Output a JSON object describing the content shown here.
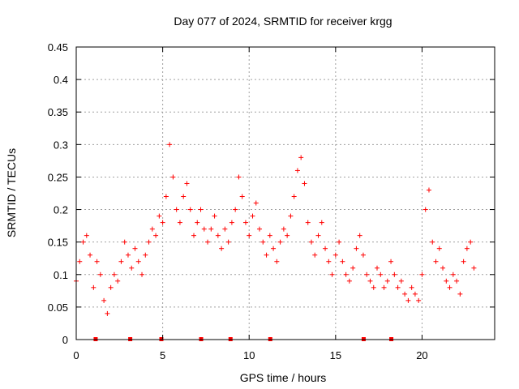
{
  "chart_data": {
    "type": "scatter",
    "title": "Day 077 of 2024, SRMTID for receiver krgg",
    "xlabel": "GPS time / hours",
    "ylabel": "SRMTID / TECUs",
    "xlim": [
      0,
      24.2
    ],
    "ylim": [
      0,
      0.45
    ],
    "xticks": [
      0,
      5,
      10,
      15,
      20
    ],
    "xtick_labels": [
      "0",
      "5",
      "10",
      "15",
      "20"
    ],
    "yticks": [
      0,
      0.05,
      0.1,
      0.15,
      0.2,
      0.25,
      0.3,
      0.35,
      0.4,
      0.45
    ],
    "ytick_labels": [
      "0",
      "0.05",
      "0.1",
      "0.15",
      "0.2",
      "0.25",
      "0.3",
      "0.35",
      "0.4",
      "0.45"
    ],
    "grid": true,
    "marker": "+",
    "color": "#ff0000",
    "series": [
      {
        "name": "SRMTID",
        "x": [
          0.0,
          0.2,
          0.4,
          0.6,
          0.8,
          1.0,
          1.2,
          1.4,
          1.6,
          1.8,
          2.0,
          2.2,
          2.4,
          2.6,
          2.8,
          3.0,
          3.2,
          3.4,
          3.6,
          3.8,
          4.0,
          4.2,
          4.4,
          4.6,
          4.8,
          5.0,
          5.2,
          5.4,
          5.6,
          5.8,
          6.0,
          6.2,
          6.4,
          6.6,
          6.8,
          7.0,
          7.2,
          7.4,
          7.6,
          7.8,
          8.0,
          8.2,
          8.4,
          8.6,
          8.8,
          9.0,
          9.2,
          9.4,
          9.6,
          9.8,
          10.0,
          10.2,
          10.4,
          10.6,
          10.8,
          11.0,
          11.2,
          11.4,
          11.6,
          11.8,
          12.0,
          12.2,
          12.4,
          12.6,
          12.8,
          13.0,
          13.2,
          13.4,
          13.6,
          13.8,
          14.0,
          14.2,
          14.4,
          14.6,
          14.8,
          15.0,
          15.2,
          15.4,
          15.6,
          15.8,
          16.0,
          16.2,
          16.4,
          16.6,
          16.8,
          17.0,
          17.2,
          17.4,
          17.6,
          17.8,
          18.0,
          18.2,
          18.4,
          18.6,
          18.8,
          19.0,
          19.2,
          19.4,
          19.6,
          19.8,
          20.0,
          20.2,
          20.4,
          20.6,
          20.8,
          21.0,
          21.2,
          21.4,
          21.6,
          21.8,
          22.0,
          22.2,
          22.4,
          22.6,
          22.8,
          23.0
        ],
        "y": [
          0.09,
          0.12,
          0.15,
          0.16,
          0.13,
          0.08,
          0.12,
          0.1,
          0.06,
          0.04,
          0.08,
          0.1,
          0.09,
          0.12,
          0.15,
          0.13,
          0.11,
          0.14,
          0.12,
          0.1,
          0.13,
          0.15,
          0.17,
          0.16,
          0.19,
          0.18,
          0.22,
          0.3,
          0.25,
          0.2,
          0.18,
          0.22,
          0.24,
          0.2,
          0.16,
          0.18,
          0.2,
          0.17,
          0.15,
          0.17,
          0.19,
          0.16,
          0.14,
          0.17,
          0.15,
          0.18,
          0.2,
          0.25,
          0.22,
          0.18,
          0.16,
          0.19,
          0.21,
          0.17,
          0.15,
          0.13,
          0.16,
          0.14,
          0.12,
          0.15,
          0.17,
          0.16,
          0.19,
          0.22,
          0.26,
          0.28,
          0.24,
          0.18,
          0.15,
          0.13,
          0.16,
          0.18,
          0.14,
          0.12,
          0.1,
          0.13,
          0.15,
          0.12,
          0.1,
          0.09,
          0.11,
          0.14,
          0.16,
          0.13,
          0.1,
          0.09,
          0.08,
          0.11,
          0.1,
          0.08,
          0.09,
          0.12,
          0.1,
          0.08,
          0.09,
          0.07,
          0.06,
          0.08,
          0.07,
          0.06,
          0.1,
          0.2,
          0.23,
          0.15,
          0.12,
          0.14,
          0.11,
          0.09,
          0.08,
          0.1,
          0.09,
          0.07,
          0.12,
          0.14,
          0.15,
          0.11
        ]
      }
    ],
    "zero_markers_x": [
      1.1,
      3.1,
      4.9,
      7.2,
      8.9,
      11.2,
      16.6,
      18.2
    ]
  }
}
